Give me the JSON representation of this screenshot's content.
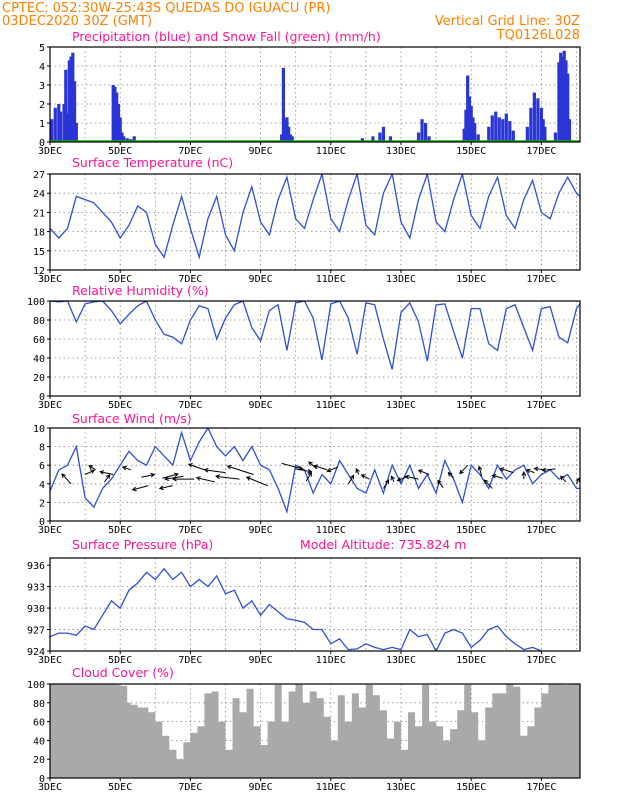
{
  "header": {
    "line1_left": "CPTEC:   052:30W-25:43S   QUEDAS DO IGUACU (PR)",
    "line2_left": "03DEC2020 30Z (GMT)",
    "line2_right": "Vertical Grid Line: 30Z",
    "line3_right": "TQ0126L028"
  },
  "x_axis": {
    "labels": [
      "3DEC",
      "5DEC",
      "7DEC",
      "9DEC",
      "11DEC",
      "13DEC",
      "15DEC",
      "17DEC"
    ],
    "start_day": 3,
    "end_day": 18.1,
    "label_days": [
      3,
      5,
      7,
      9,
      11,
      13,
      15,
      17
    ]
  },
  "colors": {
    "precip": "#2b35d6",
    "snow": "#00b000",
    "line": "#2f4fd8",
    "cloud": "#a9a9a9",
    "header": "#ff8000",
    "title": "#ff1493"
  },
  "chart_data": [
    {
      "type": "bar",
      "title": "Precipitation (blue) and Snow Fall (green) (mm/h)",
      "ylim": [
        0,
        5
      ],
      "yticks": [
        "0",
        "1",
        "2",
        "3",
        "4",
        "5"
      ],
      "series": [
        {
          "name": "Precipitation (blue)",
          "points": [
            [
              3.05,
              1.2
            ],
            [
              3.15,
              1.8
            ],
            [
              3.25,
              2.0
            ],
            [
              3.3,
              1.6
            ],
            [
              3.4,
              2.0
            ],
            [
              3.45,
              3.8
            ],
            [
              3.5,
              1.5
            ],
            [
              3.55,
              4.3
            ],
            [
              3.6,
              4.5
            ],
            [
              3.65,
              4.7
            ],
            [
              3.7,
              3.2
            ],
            [
              3.75,
              1.0
            ],
            [
              4.8,
              3.0
            ],
            [
              4.85,
              2.9
            ],
            [
              4.9,
              2.6
            ],
            [
              4.95,
              2.0
            ],
            [
              5.0,
              1.3
            ],
            [
              5.05,
              0.5
            ],
            [
              5.1,
              0.3
            ],
            [
              5.2,
              0.2
            ],
            [
              5.3,
              0.15
            ],
            [
              5.4,
              0.3
            ],
            [
              9.6,
              0.4
            ],
            [
              9.65,
              3.9
            ],
            [
              9.7,
              1.2
            ],
            [
              9.75,
              1.3
            ],
            [
              9.8,
              0.8
            ],
            [
              9.85,
              0.4
            ],
            [
              9.9,
              0.3
            ],
            [
              11.9,
              0.2
            ],
            [
              12.2,
              0.3
            ],
            [
              12.4,
              0.5
            ],
            [
              12.5,
              0.8
            ],
            [
              12.7,
              0.3
            ],
            [
              13.5,
              0.5
            ],
            [
              13.6,
              1.2
            ],
            [
              13.7,
              1.0
            ],
            [
              13.8,
              0.3
            ],
            [
              14.8,
              0.7
            ],
            [
              14.85,
              1.7
            ],
            [
              14.9,
              3.5
            ],
            [
              14.95,
              2.4
            ],
            [
              15.0,
              1.9
            ],
            [
              15.05,
              1.3
            ],
            [
              15.1,
              1.0
            ],
            [
              15.2,
              0.4
            ],
            [
              15.5,
              0.8
            ],
            [
              15.6,
              1.4
            ],
            [
              15.7,
              1.6
            ],
            [
              15.8,
              1.3
            ],
            [
              15.9,
              1.2
            ],
            [
              16.0,
              1.5
            ],
            [
              16.1,
              1.1
            ],
            [
              16.2,
              0.6
            ],
            [
              16.6,
              0.8
            ],
            [
              16.7,
              1.8
            ],
            [
              16.8,
              2.6
            ],
            [
              16.9,
              2.3
            ],
            [
              17.0,
              1.8
            ],
            [
              17.05,
              1.2
            ],
            [
              17.1,
              0.8
            ],
            [
              17.4,
              0.5
            ],
            [
              17.5,
              4.2
            ],
            [
              17.55,
              4.7
            ],
            [
              17.6,
              4.5
            ],
            [
              17.65,
              4.8
            ],
            [
              17.7,
              4.3
            ],
            [
              17.75,
              3.6
            ],
            [
              17.8,
              1.2
            ]
          ]
        },
        {
          "name": "Snow Fall (green)",
          "points": [
            [
              3.0,
              0.05
            ],
            [
              18.1,
              0.05
            ]
          ]
        }
      ]
    },
    {
      "type": "line",
      "title": "Surface Temperature (nC)",
      "ylim": [
        12,
        27
      ],
      "yticks": [
        "12",
        "15",
        "18",
        "21",
        "24",
        "27"
      ],
      "x": [
        3.0,
        3.25,
        3.5,
        3.75,
        4.0,
        4.25,
        4.5,
        4.75,
        5.0,
        5.25,
        5.5,
        5.75,
        6.0,
        6.25,
        6.5,
        6.75,
        7.0,
        7.25,
        7.5,
        7.75,
        8.0,
        8.25,
        8.5,
        8.75,
        9.0,
        9.25,
        9.5,
        9.75,
        10.0,
        10.25,
        10.5,
        10.75,
        11.0,
        11.25,
        11.5,
        11.75,
        12.0,
        12.25,
        12.5,
        12.75,
        13.0,
        13.25,
        13.5,
        13.75,
        14.0,
        14.25,
        14.5,
        14.75,
        15.0,
        15.25,
        15.5,
        15.75,
        16.0,
        16.25,
        16.5,
        16.75,
        17.0,
        17.25,
        17.5,
        17.75,
        18.0,
        18.1
      ],
      "y": [
        18.5,
        17,
        18.5,
        23.5,
        23,
        22.5,
        21,
        19.5,
        17,
        19,
        22,
        21,
        16,
        14,
        19,
        23.5,
        18.5,
        14,
        20,
        23.5,
        17.5,
        15,
        21,
        25,
        19.5,
        17.5,
        23,
        26.5,
        20,
        18.5,
        23,
        27,
        20,
        18,
        23,
        27,
        19,
        17.5,
        24,
        27,
        19.5,
        17,
        23,
        27,
        19.5,
        18,
        23,
        27,
        20.5,
        18.5,
        23.5,
        26.5,
        20.5,
        18.5,
        23,
        26,
        21,
        20,
        24,
        26.5,
        24,
        23.5
      ]
    },
    {
      "type": "line",
      "title": "Relative Humidity (%)",
      "ylim": [
        0,
        100
      ],
      "yticks": [
        "0",
        "20",
        "40",
        "60",
        "80",
        "100"
      ],
      "x": [
        3.0,
        3.25,
        3.5,
        3.75,
        4.0,
        4.25,
        4.5,
        4.75,
        5.0,
        5.25,
        5.5,
        5.75,
        6.0,
        6.25,
        6.5,
        6.75,
        7.0,
        7.25,
        7.5,
        7.75,
        8.0,
        8.25,
        8.5,
        8.75,
        9.0,
        9.25,
        9.5,
        9.75,
        10.0,
        10.25,
        10.5,
        10.75,
        11.0,
        11.25,
        11.5,
        11.75,
        12.0,
        12.25,
        12.5,
        12.75,
        13.0,
        13.25,
        13.5,
        13.75,
        14.0,
        14.25,
        14.5,
        14.75,
        15.0,
        15.25,
        15.5,
        15.75,
        16.0,
        16.25,
        16.5,
        16.75,
        17.0,
        17.25,
        17.5,
        17.75,
        18.0,
        18.1
      ],
      "y": [
        100,
        99,
        100,
        78,
        97,
        99,
        100,
        90,
        76,
        86,
        95,
        100,
        80,
        65,
        62,
        55,
        80,
        95,
        92,
        60,
        82,
        96,
        100,
        72,
        58,
        90,
        96,
        48,
        98,
        100,
        82,
        38,
        97,
        100,
        82,
        44,
        98,
        96,
        60,
        28,
        88,
        98,
        78,
        37,
        96,
        97,
        68,
        40,
        92,
        92,
        55,
        48,
        92,
        96,
        72,
        48,
        92,
        94,
        62,
        56,
        92,
        97
      ]
    },
    {
      "type": "line",
      "title": "Surface Wind (m/s)",
      "ylim": [
        0,
        10
      ],
      "yticks": [
        "0",
        "2",
        "4",
        "6",
        "8",
        "10"
      ],
      "x": [
        3.0,
        3.25,
        3.5,
        3.75,
        4.0,
        4.25,
        4.5,
        4.75,
        5.0,
        5.25,
        5.5,
        5.75,
        6.0,
        6.25,
        6.5,
        6.75,
        7.0,
        7.25,
        7.5,
        7.75,
        8.0,
        8.25,
        8.5,
        8.75,
        9.0,
        9.25,
        9.5,
        9.75,
        10.0,
        10.25,
        10.5,
        10.75,
        11.0,
        11.25,
        11.5,
        11.75,
        12.0,
        12.25,
        12.5,
        12.75,
        13.0,
        13.25,
        13.5,
        13.75,
        14.0,
        14.25,
        14.5,
        14.75,
        15.0,
        15.25,
        15.5,
        15.75,
        16.0,
        16.25,
        16.5,
        16.75,
        17.0,
        17.25,
        17.5,
        17.75,
        18.0,
        18.1
      ],
      "y": [
        3.2,
        5.5,
        6,
        8,
        2.5,
        1.5,
        3.5,
        4.5,
        6,
        7.5,
        6.5,
        6,
        8,
        7,
        6,
        9.5,
        6.5,
        8.5,
        10,
        8,
        7,
        8,
        6.5,
        8,
        6,
        5.5,
        3.5,
        1,
        6,
        5.5,
        3,
        5,
        4,
        6.5,
        5,
        3.5,
        3,
        5.5,
        3,
        6,
        4,
        6,
        3.5,
        5,
        3,
        6.5,
        4.5,
        2,
        6,
        5,
        3.5,
        6,
        4.5,
        5.5,
        6,
        4,
        5,
        5.5,
        4.5,
        5,
        3.5,
        3.5
      ]
    },
    {
      "type": "line",
      "title": "Surface Pressure (hPa)",
      "annotation": "Model Altitude: 735.824 m",
      "ylim": [
        924,
        937
      ],
      "yticks": [
        "924",
        "927",
        "930",
        "933",
        "936"
      ],
      "x": [
        3.0,
        3.25,
        3.5,
        3.75,
        4.0,
        4.25,
        4.5,
        4.75,
        5.0,
        5.25,
        5.5,
        5.75,
        6.0,
        6.25,
        6.5,
        6.75,
        7.0,
        7.25,
        7.5,
        7.75,
        8.0,
        8.25,
        8.5,
        8.75,
        9.0,
        9.25,
        9.5,
        9.75,
        10.0,
        10.25,
        10.5,
        10.75,
        11.0,
        11.25,
        11.5,
        11.75,
        12.0,
        12.25,
        12.5,
        12.75,
        13.0,
        13.25,
        13.5,
        13.75,
        14.0,
        14.25,
        14.5,
        14.75,
        15.0,
        15.25,
        15.5,
        15.75,
        16.0,
        16.25,
        16.5,
        16.75,
        17.0,
        17.25,
        17.5,
        17.75,
        18.0,
        18.1
      ],
      "y": [
        926,
        926.5,
        926.5,
        926.2,
        927.5,
        927,
        929,
        931,
        930,
        932.5,
        933.5,
        935,
        934,
        935.5,
        934,
        935,
        933,
        934,
        933,
        934.5,
        932,
        932.5,
        930,
        931,
        929,
        930.5,
        929.5,
        928.5,
        928.3,
        928,
        927,
        927,
        925,
        925.7,
        924.2,
        924.3,
        925,
        924.5,
        924.2,
        924.5,
        924.2,
        927,
        926,
        926.3,
        924,
        926.5,
        927,
        926.5,
        924.5,
        925.5,
        927,
        927.5,
        926,
        925,
        924.2,
        924.5,
        924,
        923.8,
        923.8,
        923.8,
        923.8,
        923.8
      ]
    },
    {
      "type": "area",
      "title": "Cloud Cover (%)",
      "ylim": [
        0,
        100
      ],
      "yticks": [
        "0",
        "20",
        "40",
        "60",
        "80",
        "100"
      ],
      "x": [
        3.0,
        3.5,
        4.0,
        4.5,
        4.9,
        5.0,
        5.2,
        5.3,
        5.5,
        5.8,
        6.0,
        6.2,
        6.4,
        6.6,
        6.8,
        7.0,
        7.2,
        7.4,
        7.6,
        7.8,
        8.0,
        8.2,
        8.4,
        8.6,
        8.8,
        9.0,
        9.2,
        9.4,
        9.6,
        9.8,
        10.0,
        10.2,
        10.4,
        10.6,
        10.8,
        11.0,
        11.2,
        11.4,
        11.6,
        11.8,
        12.0,
        12.2,
        12.4,
        12.6,
        12.8,
        13.0,
        13.2,
        13.4,
        13.6,
        13.8,
        14.0,
        14.2,
        14.4,
        14.6,
        14.8,
        15.0,
        15.2,
        15.4,
        15.6,
        15.8,
        16.0,
        16.2,
        16.4,
        16.6,
        16.8,
        17.0,
        17.2,
        17.4,
        17.6,
        17.8,
        18.1
      ],
      "y": [
        100,
        100,
        100,
        100,
        99,
        98,
        80,
        78,
        75,
        70,
        60,
        45,
        30,
        20,
        38,
        48,
        55,
        90,
        92,
        60,
        30,
        85,
        70,
        95,
        55,
        35,
        60,
        99,
        60,
        92,
        100,
        80,
        92,
        85,
        65,
        40,
        88,
        60,
        90,
        75,
        99,
        88,
        72,
        42,
        60,
        30,
        70,
        55,
        99,
        60,
        55,
        40,
        52,
        72,
        99,
        70,
        40,
        75,
        90,
        90,
        100,
        97,
        45,
        55,
        75,
        90,
        100,
        100,
        99,
        100,
        100
      ]
    }
  ],
  "wind_vectors": [
    [
      3.6,
      4,
      -0.35,
      0.7
    ],
    [
      4.0,
      5,
      0.35,
      0.3
    ],
    [
      4.3,
      5.5,
      -0.25,
      0.3
    ],
    [
      4.55,
      4.2,
      0.2,
      0.5
    ],
    [
      4.8,
      5,
      -0.5,
      0.2
    ],
    [
      5.3,
      5.5,
      -0.3,
      0.2
    ],
    [
      5.6,
      4.7,
      0.5,
      0.2
    ],
    [
      5.8,
      3.8,
      -0.6,
      -0.3
    ],
    [
      6.2,
      4.6,
      0.6,
      0.3
    ],
    [
      6.5,
      3.8,
      -0.5,
      -0.2
    ],
    [
      6.8,
      4.8,
      -0.7,
      -0.2
    ],
    [
      7.1,
      4.5,
      -0.8,
      0
    ],
    [
      7.4,
      5.5,
      -0.6,
      0.4
    ],
    [
      7.7,
      4.2,
      -0.7,
      0.3
    ],
    [
      8.0,
      5.2,
      -0.8,
      0.2
    ],
    [
      8.4,
      4.5,
      -0.9,
      0.2
    ],
    [
      8.8,
      5,
      -1.0,
      0.6
    ],
    [
      9.2,
      3.8,
      -0.8,
      0.6
    ],
    [
      9.6,
      6.2,
      0.8,
      -0.4
    ],
    [
      10.0,
      5.6,
      0.6,
      -0.2
    ],
    [
      10.3,
      4.3,
      0.2,
      0.6
    ],
    [
      10.6,
      5.6,
      -0.3,
      0.5
    ],
    [
      10.9,
      5.5,
      -0.5,
      0.3
    ],
    [
      11.2,
      5.8,
      -0.4,
      -0.3
    ],
    [
      11.5,
      4,
      0.2,
      0.6
    ],
    [
      11.8,
      5,
      -0.1,
      0.4
    ],
    [
      12.1,
      4.5,
      -0.3,
      0.3
    ],
    [
      12.5,
      3.5,
      0.2,
      0.6
    ],
    [
      12.8,
      4.2,
      -0.1,
      0.4
    ],
    [
      13.2,
      4.8,
      -0.4,
      -0.3
    ],
    [
      13.5,
      4.5,
      -0.5,
      0.2
    ],
    [
      13.8,
      5,
      -0.4,
      0.3
    ],
    [
      14.2,
      3.6,
      -0.2,
      0.5
    ],
    [
      14.5,
      4.6,
      -0.2,
      0.4
    ],
    [
      14.9,
      6,
      -0.3,
      -0.6
    ],
    [
      15.3,
      4.8,
      -0.1,
      0.7
    ],
    [
      15.6,
      3.5,
      -0.3,
      0.6
    ],
    [
      15.9,
      4.6,
      -0.4,
      0.2
    ],
    [
      16.2,
      5.2,
      -0.5,
      0.3
    ],
    [
      16.5,
      4.5,
      0,
      0.5
    ],
    [
      16.8,
      5.2,
      -0.3,
      0.2
    ],
    [
      17.1,
      5.5,
      -0.4,
      0.1
    ],
    [
      17.4,
      5.6,
      -0.5,
      -0.1
    ],
    [
      17.7,
      4.2,
      -0.2,
      0.4
    ],
    [
      18.0,
      4,
      0.1,
      0.4
    ]
  ]
}
